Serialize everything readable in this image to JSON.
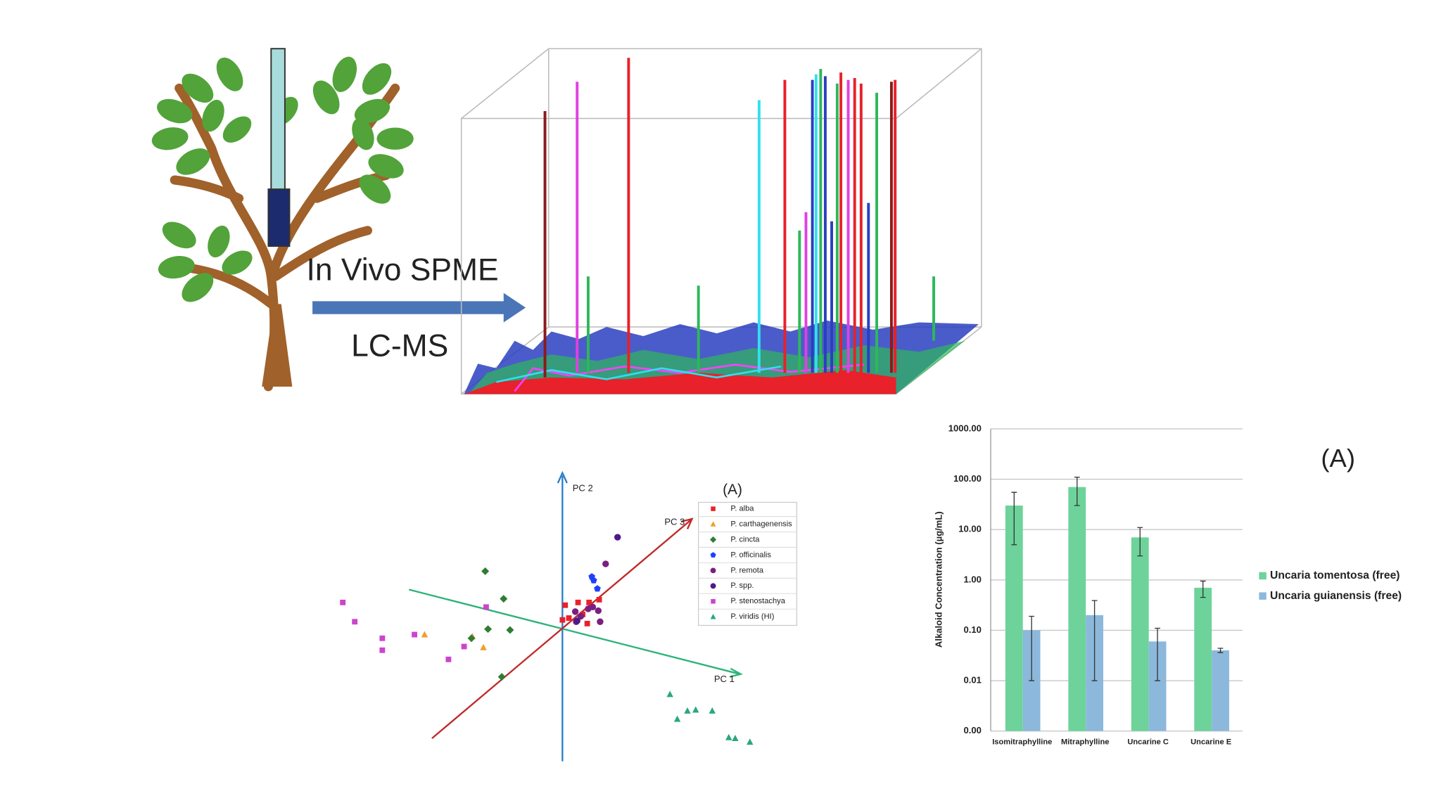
{
  "illustration": {
    "method": "In Vivo SPME",
    "detection": "LC-MS"
  },
  "chart_data": [
    {
      "type": "scatter",
      "annotation": "(A)",
      "pc1_label": "PC 1",
      "pc2_label": "PC 2",
      "pc3_label": "PC 3",
      "xlim": [
        -13,
        11
      ],
      "ylim": [
        -7.5,
        8.5
      ],
      "series": [
        {
          "name": "P. alba",
          "color": "#e8212a",
          "marker": "square",
          "x": [
            0.15,
            0.85,
            1.45,
            2,
            0,
            1.1,
            1.35,
            0.35
          ],
          "values": [
            1.25,
            1.4,
            1.4,
            1.55,
            0.45,
            0.75,
            0.25,
            0.55
          ]
        },
        {
          "name": "P. carthagenensis",
          "color": "#f39c2b",
          "marker": "triangle",
          "x": [
            -7.5,
            -4.9,
            -4.3
          ],
          "values": [
            -0.35,
            -0.45,
            -1.05
          ]
        },
        {
          "name": "P. cincta",
          "color": "#2e7d32",
          "marker": "diamond",
          "x": [
            -4.2,
            -3.2,
            -4.05,
            -2.85,
            -4.95,
            -3.3
          ],
          "values": [
            3.1,
            1.6,
            -0.05,
            -0.1,
            -0.55,
            -2.65
          ]
        },
        {
          "name": "P. officinalis",
          "color": "#1f3fff",
          "marker": "pentagon",
          "x": [
            1.6,
            1.9,
            1.7
          ],
          "values": [
            2.8,
            2.15,
            2.6
          ]
        },
        {
          "name": "P. remota",
          "color": "#7b1f7f",
          "marker": "circle",
          "x": [
            2.35,
            0.7,
            1.4,
            1.95,
            0.75,
            2.05,
            1,
            1.65
          ],
          "values": [
            3.5,
            0.9,
            1.05,
            0.95,
            0.35,
            0.35,
            0.65,
            1.15
          ]
        },
        {
          "name": "P. spp.",
          "color": "#4b1a8c",
          "marker": "circle",
          "x": [
            3,
            0.8
          ],
          "values": [
            4.95,
            0.4
          ]
        },
        {
          "name": "P. stenostachya",
          "color": "#cc44cc",
          "marker": "square",
          "x": [
            -11.95,
            -11.3,
            -9.8,
            -9.8,
            -8.05,
            -6.2,
            -5.35,
            -4.15
          ],
          "values": [
            1.4,
            0.35,
            -0.55,
            -1.2,
            -0.35,
            -1.7,
            -1,
            1.15
          ]
        },
        {
          "name": "P. viridis (HI)",
          "color": "#2aa87a",
          "marker": "triangle",
          "x": [
            5.85,
            6.8,
            7.25,
            8.15,
            6.25,
            9.05,
            9.4,
            10.2
          ],
          "values": [
            -3.6,
            -4.5,
            -4.45,
            -4.5,
            -4.95,
            -5.95,
            -6,
            -6.2
          ]
        }
      ]
    },
    {
      "type": "bar",
      "annotation": "(A)",
      "y_label": "Alkaloid Concentration (µg/mL)",
      "log_scale": true,
      "grid": true,
      "categories": [
        "Isomitraphylline",
        "Mitraphylline",
        "Uncarine C",
        "Uncarine E"
      ],
      "ylim": [
        0.001,
        1000
      ],
      "yticks": [
        {
          "value": 0.001,
          "label": "0.00"
        },
        {
          "value": 0.01,
          "label": "0.01"
        },
        {
          "value": 0.1,
          "label": "0.10"
        },
        {
          "value": 1,
          "label": "1.00"
        },
        {
          "value": 10,
          "label": "10.00"
        },
        {
          "value": 100,
          "label": "100.00"
        },
        {
          "value": 1000,
          "label": "1000.00"
        }
      ],
      "series": [
        {
          "name": "Uncaria tomentosa (free)",
          "color": "#6dd39a",
          "values": [
            30,
            70,
            7,
            0.7
          ],
          "errors": [
            25,
            40,
            4,
            0.25
          ]
        },
        {
          "name": "Uncaria guianensis (free)",
          "color": "#8cb8dc",
          "values": [
            0.1,
            0.2,
            0.06,
            0.04
          ],
          "errors": [
            0.09,
            0.19,
            0.05,
            0.004
          ]
        }
      ]
    }
  ]
}
